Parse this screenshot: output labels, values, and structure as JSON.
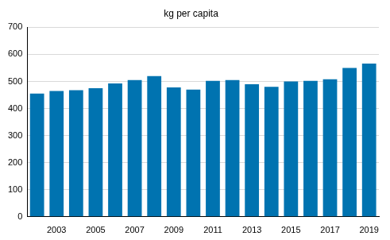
{
  "chart_data": {
    "type": "bar",
    "title": "kg per capita",
    "categories": [
      null,
      "2003",
      null,
      "2005",
      null,
      "2007",
      null,
      "2009",
      null,
      "2011",
      null,
      "2013",
      null,
      "2015",
      null,
      "2017",
      null,
      "2019"
    ],
    "values": [
      455,
      465,
      468,
      475,
      493,
      505,
      520,
      478,
      470,
      502,
      505,
      490,
      480,
      500,
      502,
      508,
      550,
      566
    ],
    "color": "#0073b0",
    "ylim": [
      0,
      700
    ],
    "yticks": [
      0,
      100,
      200,
      300,
      400,
      500,
      600,
      700
    ],
    "grid": true
  }
}
